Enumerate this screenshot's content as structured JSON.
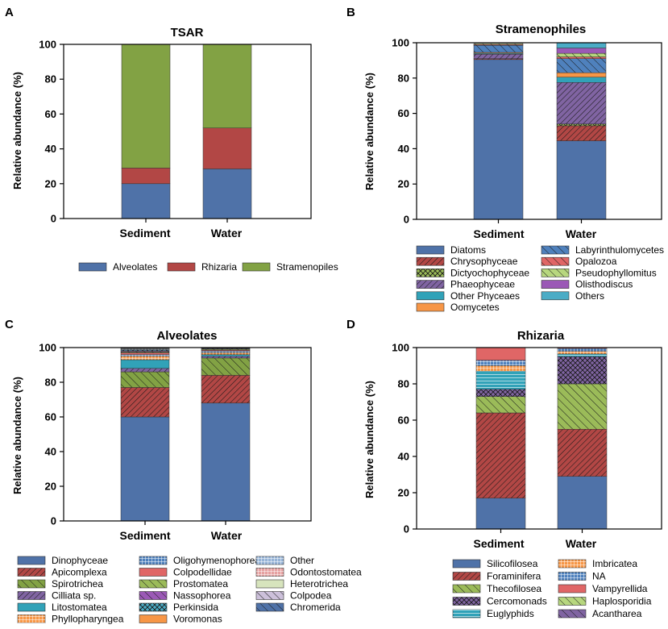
{
  "chart_data": [
    {
      "panel": "A",
      "type": "bar",
      "stacked": true,
      "title": "TSAR",
      "ylabel": "Relative abundance (%)",
      "xlabel": "",
      "ylim": [
        0,
        100
      ],
      "yticks": [
        "0",
        "20",
        "40",
        "60",
        "80",
        "100"
      ],
      "categories": [
        "Sediment",
        "Water"
      ],
      "series": [
        {
          "name": "Alveolates",
          "color": "#4f72a8",
          "pattern": "solid",
          "values": [
            20,
            28.5
          ]
        },
        {
          "name": "Rhizaria",
          "color": "#b24745",
          "pattern": "solid",
          "values": [
            9,
            23.5
          ]
        },
        {
          "name": "Stramenopiles",
          "color": "#82a244",
          "pattern": "solid",
          "values": [
            71,
            48
          ]
        }
      ]
    },
    {
      "panel": "B",
      "type": "bar",
      "stacked": true,
      "title": "Stramenophiles",
      "ylabel": "Relative abundance (%)",
      "xlabel": "",
      "ylim": [
        0,
        100
      ],
      "yticks": [
        "0",
        "20",
        "40",
        "60",
        "80",
        "100"
      ],
      "categories": [
        "Sediment",
        "Water"
      ],
      "series": [
        {
          "name": "Diatoms",
          "color": "#4f72a8",
          "pattern": "solid",
          "values": [
            90.5,
            44.5
          ]
        },
        {
          "name": "Chrysophyceae",
          "color": "#b24745",
          "pattern": "diag-fine",
          "values": [
            0.5,
            8.5
          ]
        },
        {
          "name": "Dictyochophyceae",
          "color": "#9bbb59",
          "pattern": "cross",
          "values": [
            0,
            1
          ]
        },
        {
          "name": "Phaeophyceae",
          "color": "#8064a2",
          "pattern": "diag-fine",
          "values": [
            2.5,
            23.5
          ]
        },
        {
          "name": "Other Phyceaes",
          "color": "#31a2b8",
          "pattern": "solid",
          "values": [
            0.5,
            3
          ]
        },
        {
          "name": "Oomycetes",
          "color": "#f79646",
          "pattern": "solid",
          "values": [
            0.5,
            2.5
          ]
        },
        {
          "name": "Labyrinthulomycetes",
          "color": "#4f81bd",
          "pattern": "diag-wide",
          "values": [
            4,
            8
          ]
        },
        {
          "name": "Opalozoa",
          "color": "#e06666",
          "pattern": "diag-wide",
          "values": [
            0.5,
            1
          ]
        },
        {
          "name": "Pseudophyllomitus",
          "color": "#b7d77e",
          "pattern": "diag-wide",
          "values": [
            0.5,
            2
          ]
        },
        {
          "name": "Olisthodiscus",
          "color": "#9b59b6",
          "pattern": "solid",
          "values": [
            0,
            3
          ]
        },
        {
          "name": "Others",
          "color": "#4bacc6",
          "pattern": "solid",
          "values": [
            0,
            3
          ]
        }
      ]
    },
    {
      "panel": "C",
      "type": "bar",
      "stacked": true,
      "title": "Alveolates",
      "ylabel": "Relative abundance (%)",
      "xlabel": "",
      "ylim": [
        0,
        100
      ],
      "yticks": [
        "0",
        "20",
        "40",
        "60",
        "80",
        "100"
      ],
      "categories": [
        "Sediment",
        "Water"
      ],
      "series": [
        {
          "name": "Dinophyceae",
          "color": "#4f72a8",
          "pattern": "solid",
          "values": [
            60,
            68
          ]
        },
        {
          "name": "Apicomplexa",
          "color": "#b24745",
          "pattern": "diag-fine",
          "values": [
            17,
            16
          ]
        },
        {
          "name": "Spirotrichea",
          "color": "#82a244",
          "pattern": "diag-wide",
          "values": [
            9,
            10
          ]
        },
        {
          "name": "Cilliata sp.",
          "color": "#8064a2",
          "pattern": "diag-fine",
          "values": [
            2,
            1
          ]
        },
        {
          "name": "Litostomatea",
          "color": "#31a2b8",
          "pattern": "solid",
          "values": [
            5,
            1
          ]
        },
        {
          "name": "Phyllopharyngea",
          "color": "#f79646",
          "pattern": "grid",
          "values": [
            2,
            1
          ]
        },
        {
          "name": "Oligohymenophorea",
          "color": "#4f81bd",
          "pattern": "grid",
          "values": [
            1,
            1
          ]
        },
        {
          "name": "Colpodellidae",
          "color": "#e06666",
          "pattern": "solid",
          "values": [
            1,
            0.5
          ]
        },
        {
          "name": "Prostomatea",
          "color": "#9bbb59",
          "pattern": "diag-wide",
          "values": [
            0.5,
            0.5
          ]
        },
        {
          "name": "Nassophorea",
          "color": "#9b59b6",
          "pattern": "diag-wide",
          "values": [
            0.5,
            0.3
          ]
        },
        {
          "name": "Perkinsida",
          "color": "#4bacc6",
          "pattern": "cross",
          "values": [
            0.5,
            0.3
          ]
        },
        {
          "name": "Voromonas",
          "color": "#f79646",
          "pattern": "solid",
          "values": [
            0.3,
            0.2
          ]
        },
        {
          "name": "Other",
          "color": "#95b3d7",
          "pattern": "grid",
          "values": [
            0.5,
            0.1
          ]
        },
        {
          "name": "Odontostomatea",
          "color": "#e6a0a0",
          "pattern": "grid",
          "values": [
            0.2,
            0.05
          ]
        },
        {
          "name": "Heterotrichea",
          "color": "#d7e4bd",
          "pattern": "solid",
          "values": [
            0.2,
            0.05
          ]
        },
        {
          "name": "Colpodea",
          "color": "#ccc0da",
          "pattern": "diag-wide",
          "values": [
            0.2,
            0.05
          ]
        },
        {
          "name": "Chromerida",
          "color": "#4f72a8",
          "pattern": "diag-wide",
          "values": [
            0.1,
            0.05
          ]
        }
      ]
    },
    {
      "panel": "D",
      "type": "bar",
      "stacked": true,
      "title": "Rhizaria",
      "ylabel": "Relative abundance (%)",
      "xlabel": "",
      "ylim": [
        0,
        100
      ],
      "yticks": [
        "0",
        "20",
        "40",
        "60",
        "80",
        "100"
      ],
      "categories": [
        "Sediment",
        "Water"
      ],
      "series": [
        {
          "name": "Silicofilosea",
          "color": "#4f72a8",
          "pattern": "solid",
          "values": [
            17,
            29
          ]
        },
        {
          "name": "Foraminifera",
          "color": "#b24745",
          "pattern": "diag-fine",
          "values": [
            47,
            26
          ]
        },
        {
          "name": "Thecofilosea",
          "color": "#9bbb59",
          "pattern": "diag-wide",
          "values": [
            9,
            25
          ]
        },
        {
          "name": "Cercomonads",
          "color": "#8064a2",
          "pattern": "cross",
          "values": [
            4,
            15
          ]
        },
        {
          "name": "Euglyphids",
          "color": "#31a2b8",
          "pattern": "hlines",
          "values": [
            10,
            1.5
          ]
        },
        {
          "name": "Imbricatea",
          "color": "#f79646",
          "pattern": "grid",
          "values": [
            3,
            1.5
          ]
        },
        {
          "name": "NA",
          "color": "#4f81bd",
          "pattern": "grid",
          "values": [
            3,
            1.5
          ]
        },
        {
          "name": "Vampyrellida",
          "color": "#e06666",
          "pattern": "solid",
          "values": [
            7,
            0.5
          ]
        },
        {
          "name": "Haplosporidia",
          "color": "#b7d77e",
          "pattern": "diag-wide",
          "values": [
            0,
            0
          ]
        },
        {
          "name": "Acantharea",
          "color": "#8064a2",
          "pattern": "diag-wide",
          "values": [
            0,
            0
          ]
        }
      ]
    }
  ]
}
